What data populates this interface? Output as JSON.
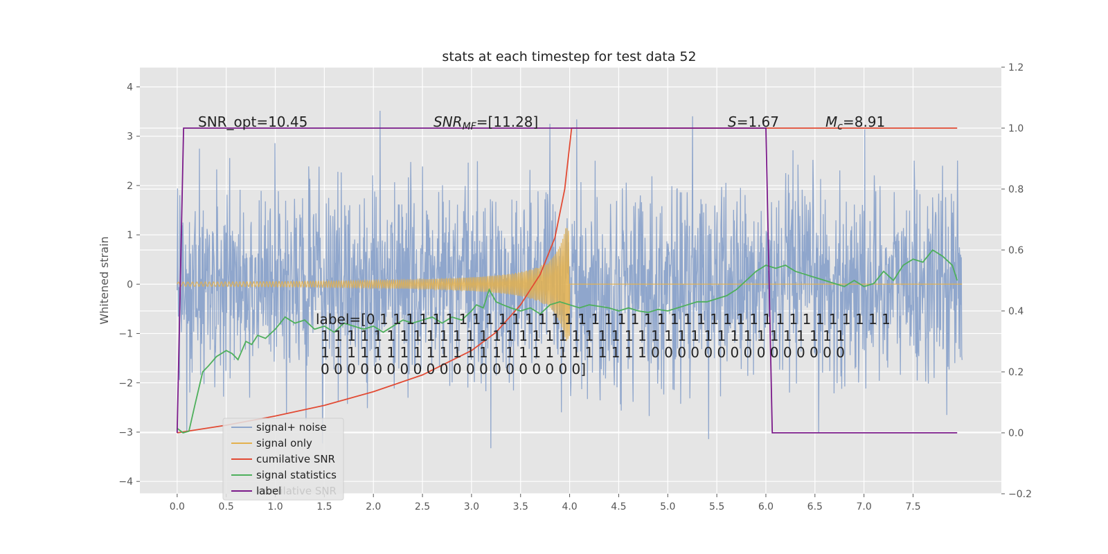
{
  "chart_data": {
    "type": "line",
    "title": "stats at each timestep for test data 52",
    "ylabel": "Whitened strain",
    "xlabel": "",
    "xlim": [
      -0.38,
      8.4
    ],
    "ylim": [
      -4.25,
      4.4
    ],
    "y2lim": [
      -0.2,
      1.2
    ],
    "grid": true,
    "legend_position": "bottom-left",
    "x_ticks": [
      0.0,
      0.5,
      1.0,
      1.5,
      2.0,
      2.5,
      3.0,
      3.5,
      4.0,
      4.5,
      5.0,
      5.5,
      6.0,
      6.5,
      7.0,
      7.5
    ],
    "x_tick_labels": [
      "0.0",
      "0.5",
      "1.0",
      "1.5",
      "2.0",
      "2.5",
      "3.0",
      "3.5",
      "4.0",
      "4.5",
      "5.0",
      "5.5",
      "6.0",
      "6.5",
      "7.0",
      "7.5"
    ],
    "y_ticks": [
      -4,
      -3,
      -2,
      -1,
      0,
      1,
      2,
      3,
      4
    ],
    "y_tick_labels": [
      "−4",
      "−3",
      "−2",
      "−1",
      "0",
      "1",
      "2",
      "3",
      "4"
    ],
    "y2_ticks": [
      -0.2,
      0.0,
      0.2,
      0.4,
      0.6,
      0.8,
      1.0,
      1.2
    ],
    "y2_tick_labels": [
      "−0.2",
      "0.0",
      "0.2",
      "0.4",
      "0.6",
      "0.8",
      "1.0",
      "1.2"
    ],
    "annotations": {
      "snr_opt": "SNR_opt=10.45",
      "snr_mf_symbol": "SNR",
      "snr_mf_sub": "MF",
      "snr_mf_value": "=[11.28]",
      "s_symbol": "S",
      "s_value": "=1.67",
      "mc_symbol": "M",
      "mc_sub": "c",
      "mc_value": "=8.91",
      "label_lines": [
        "label=[0 1 1 1 1 1 1 1 1 1 1 1 1 1 1 1 1 1 1 1 1 1 1 1 1 1 1 1 1 1 1 1 1 1 1 1 1 1 1 1",
        "1 1 1 1 1 1 1 1 1 1 1 1 1 1 1 1 1 1 1 1 1 1 1 1 1 1 1 1 1 1 1 1 1 1 1 1 1 1 1 1",
        "1 1 1 1 1 1 1 1 1 1 1 1 1 1 1 1 1 1 1 1 1 1 1 1 1 0 0 0 0 0 0 0 0 0 0 0 0 0 0 0",
        "0 0 0 0 0 0 0 0 0 0 0 0 0 0 0 0 0 0 0 0]"
      ]
    },
    "series": [
      {
        "name": "signal+ noise",
        "color": "#8fa6cc",
        "axis": "left",
        "description_range": [
          -3.7,
          4.0
        ],
        "x_range": [
          0.0,
          8.0
        ],
        "noise_std": 1.0
      },
      {
        "name": "signal only",
        "color": "#e3b04d",
        "axis": "left",
        "x_range": [
          0.0,
          4.0
        ],
        "chirp_amplitude_end": 1.2
      },
      {
        "name": "cumilative SNR",
        "color": "#e24a33",
        "axis": "right",
        "x": [
          0.0,
          0.5,
          1.0,
          1.5,
          2.0,
          2.5,
          3.0,
          3.25,
          3.5,
          3.7,
          3.85,
          3.95,
          4.02,
          4.5,
          5.0,
          5.5,
          6.0,
          6.5,
          7.0,
          7.5,
          7.95
        ],
        "y": [
          0.0,
          0.025,
          0.055,
          0.09,
          0.135,
          0.19,
          0.27,
          0.33,
          0.42,
          0.52,
          0.64,
          0.8,
          1.0,
          1.0,
          1.0,
          1.0,
          1.0,
          1.0,
          1.0,
          1.0,
          1.0
        ]
      },
      {
        "name": "signal statistics",
        "color": "#4daf5b",
        "axis": "right",
        "x": [
          0.0,
          0.06,
          0.12,
          0.18,
          0.26,
          0.32,
          0.4,
          0.5,
          0.56,
          0.62,
          0.7,
          0.76,
          0.82,
          0.9,
          1.0,
          1.1,
          1.2,
          1.3,
          1.4,
          1.5,
          1.6,
          1.7,
          1.8,
          1.9,
          2.0,
          2.1,
          2.2,
          2.3,
          2.4,
          2.5,
          2.6,
          2.7,
          2.8,
          2.9,
          3.0,
          3.05,
          3.12,
          3.18,
          3.25,
          3.32,
          3.4,
          3.5,
          3.6,
          3.7,
          3.8,
          3.9,
          4.0,
          4.1,
          4.2,
          4.3,
          4.4,
          4.5,
          4.6,
          4.7,
          4.8,
          4.9,
          5.0,
          5.1,
          5.2,
          5.3,
          5.4,
          5.5,
          5.6,
          5.7,
          5.8,
          5.9,
          6.0,
          6.1,
          6.2,
          6.3,
          6.4,
          6.5,
          6.6,
          6.7,
          6.8,
          6.9,
          7.0,
          7.1,
          7.2,
          7.3,
          7.4,
          7.5,
          7.6,
          7.7,
          7.8,
          7.9,
          7.95
        ],
        "y": [
          0.015,
          0.0,
          0.005,
          0.09,
          0.2,
          0.22,
          0.25,
          0.27,
          0.26,
          0.24,
          0.3,
          0.29,
          0.32,
          0.31,
          0.34,
          0.38,
          0.36,
          0.37,
          0.34,
          0.35,
          0.33,
          0.36,
          0.35,
          0.34,
          0.35,
          0.33,
          0.35,
          0.37,
          0.36,
          0.37,
          0.38,
          0.36,
          0.38,
          0.37,
          0.4,
          0.42,
          0.41,
          0.47,
          0.43,
          0.42,
          0.41,
          0.4,
          0.41,
          0.39,
          0.42,
          0.43,
          0.42,
          0.41,
          0.42,
          0.415,
          0.41,
          0.4,
          0.41,
          0.4,
          0.395,
          0.405,
          0.4,
          0.41,
          0.42,
          0.43,
          0.43,
          0.44,
          0.45,
          0.47,
          0.5,
          0.53,
          0.55,
          0.54,
          0.55,
          0.53,
          0.52,
          0.51,
          0.5,
          0.49,
          0.48,
          0.5,
          0.48,
          0.49,
          0.53,
          0.5,
          0.55,
          0.57,
          0.56,
          0.6,
          0.58,
          0.55,
          0.5
        ]
      },
      {
        "name": "label",
        "color": "#7b1a8a",
        "axis": "right",
        "x": [
          0.0,
          0.065,
          6.0,
          6.065,
          7.95
        ],
        "y": [
          0.0,
          1.0,
          1.0,
          0.0,
          0.0
        ]
      }
    ]
  },
  "legend": {
    "items": [
      {
        "label": "signal+ noise",
        "color": "#8fa6cc"
      },
      {
        "label": "signal only",
        "color": "#e3b04d"
      },
      {
        "label": "cumilative SNR",
        "color": "#e24a33"
      },
      {
        "label": "signal statistics",
        "color": "#4daf5b"
      },
      {
        "label": "label",
        "color": "#7b1a8a"
      }
    ],
    "ghost_text": "cumilative SNR"
  },
  "colors": {
    "plot_background": "#e5e5e5",
    "grid": "#ffffff"
  }
}
